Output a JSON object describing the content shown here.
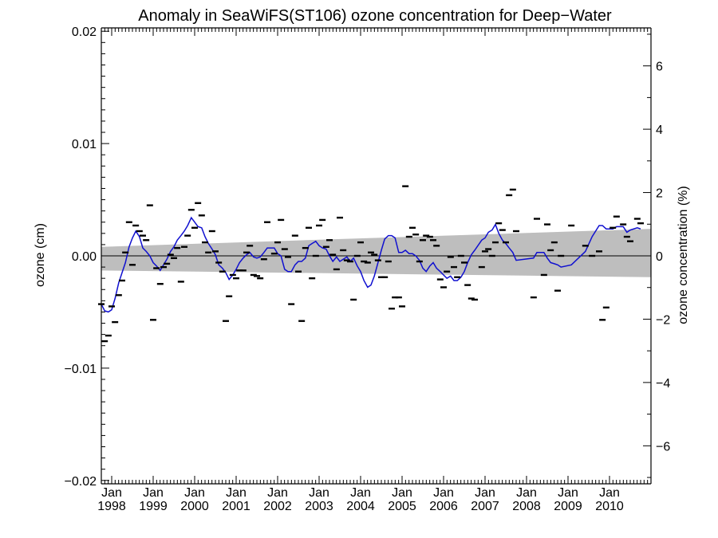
{
  "chart_data": {
    "type": "line",
    "title": "Anomaly in SeaWiFS(ST106) ozone concentration for Deep−Water",
    "ylabel_left": "ozone (cm)",
    "ylabel_right": "ozone concentration (%)",
    "xlabel": "",
    "xlim": [
      1997.75,
      2011.0
    ],
    "ylim_left": [
      -0.0203,
      0.0203
    ],
    "ylim_right": [
      -7.2,
      7.2
    ],
    "y_ticks_left": [
      {
        "value": 0.02,
        "label": "0.02"
      },
      {
        "value": 0.01,
        "label": "0.01"
      },
      {
        "value": 0.0,
        "label": "0.00"
      },
      {
        "value": -0.01,
        "label": "−0.01"
      },
      {
        "value": -0.02,
        "label": "−0.02"
      }
    ],
    "y_ticks_right": [
      {
        "value": 6,
        "label": "6"
      },
      {
        "value": 4,
        "label": "4"
      },
      {
        "value": 2,
        "label": "2"
      },
      {
        "value": 0,
        "label": "0"
      },
      {
        "value": -2,
        "label": "−2"
      },
      {
        "value": -4,
        "label": "−4"
      },
      {
        "value": -6,
        "label": "−6"
      }
    ],
    "x_ticks": [
      {
        "value": 1998,
        "month": "Jan",
        "year": "1998"
      },
      {
        "value": 1999,
        "month": "Jan",
        "year": "1999"
      },
      {
        "value": 2000,
        "month": "Jan",
        "year": "2000"
      },
      {
        "value": 2001,
        "month": "Jan",
        "year": "2001"
      },
      {
        "value": 2002,
        "month": "Jan",
        "year": "2002"
      },
      {
        "value": 2003,
        "month": "Jan",
        "year": "2003"
      },
      {
        "value": 2004,
        "month": "Jan",
        "year": "2004"
      },
      {
        "value": 2005,
        "month": "Jan",
        "year": "2005"
      },
      {
        "value": 2006,
        "month": "Jan",
        "year": "2006"
      },
      {
        "value": 2007,
        "month": "Jan",
        "year": "2007"
      },
      {
        "value": 2008,
        "month": "Jan",
        "year": "2008"
      },
      {
        "value": 2009,
        "month": "Jan",
        "year": "2009"
      },
      {
        "value": 2010,
        "month": "Jan",
        "year": "2010"
      }
    ],
    "zero_line": 0.0,
    "confidence_band": {
      "x": [
        1997.75,
        2011.0
      ],
      "upper": [
        0.0008,
        0.0024
      ],
      "lower": [
        -0.0013,
        -0.0019
      ]
    },
    "monthly_anomalies": [
      [
        1997.75,
        -0.0043
      ],
      [
        1997.83,
        -0.0076
      ],
      [
        1997.92,
        -0.0071
      ],
      [
        1998.0,
        -0.0045
      ],
      [
        1998.08,
        -0.0059
      ],
      [
        1998.17,
        -0.0035
      ],
      [
        1998.25,
        -0.0022
      ],
      [
        1998.33,
        0.0003
      ],
      [
        1998.42,
        0.003
      ],
      [
        1998.5,
        -0.0008
      ],
      [
        1998.58,
        0.0027
      ],
      [
        1998.67,
        0.0022
      ],
      [
        1998.75,
        0.0018
      ],
      [
        1998.83,
        0.0014
      ],
      [
        1998.92,
        0.0045
      ],
      [
        1999.0,
        -0.0057
      ],
      [
        1999.08,
        -0.0011
      ],
      [
        1999.17,
        -0.0025
      ],
      [
        1999.25,
        -0.001
      ],
      [
        1999.33,
        -0.0007
      ],
      [
        1999.42,
        0.0001
      ],
      [
        1999.5,
        -0.0002
      ],
      [
        1999.58,
        0.0007
      ],
      [
        1999.67,
        -0.0023
      ],
      [
        1999.75,
        0.0008
      ],
      [
        1999.83,
        0.0018
      ],
      [
        1999.92,
        0.0041
      ],
      [
        2000.0,
        0.0025
      ],
      [
        2000.08,
        0.0047
      ],
      [
        2000.17,
        0.0036
      ],
      [
        2000.25,
        0.0012
      ],
      [
        2000.33,
        0.0003
      ],
      [
        2000.42,
        0.0022
      ],
      [
        2000.5,
        0.0004
      ],
      [
        2000.58,
        -0.0006
      ],
      [
        2000.67,
        -0.0014
      ],
      [
        2000.75,
        -0.0058
      ],
      [
        2000.83,
        -0.0036
      ],
      [
        2000.92,
        -0.0017
      ],
      [
        2001.0,
        -0.002
      ],
      [
        2001.08,
        -0.0013
      ],
      [
        2001.17,
        -0.0013
      ],
      [
        2001.25,
        0.0003
      ],
      [
        2001.33,
        0.0009
      ],
      [
        2001.42,
        -0.0017
      ],
      [
        2001.5,
        -0.0018
      ],
      [
        2001.58,
        -0.002
      ],
      [
        2001.67,
        -0.0003
      ],
      [
        2001.75,
        0.003
      ],
      [
        2001.92,
        0.0002
      ],
      [
        2002.0,
        0.0012
      ],
      [
        2002.08,
        0.0032
      ],
      [
        2002.17,
        0.0006
      ],
      [
        2002.25,
        -0.0001
      ],
      [
        2002.33,
        -0.0043
      ],
      [
        2002.42,
        0.0018
      ],
      [
        2002.5,
        -0.0014
      ],
      [
        2002.58,
        -0.0058
      ],
      [
        2002.67,
        0.0007
      ],
      [
        2002.75,
        0.0025
      ],
      [
        2002.83,
        -0.002
      ],
      [
        2002.92,
        0.0
      ],
      [
        2003.0,
        0.0027
      ],
      [
        2003.08,
        0.0032
      ],
      [
        2003.17,
        0.0008
      ],
      [
        2003.25,
        0.0014
      ],
      [
        2003.33,
        0.0001
      ],
      [
        2003.42,
        -0.0012
      ],
      [
        2003.5,
        0.0034
      ],
      [
        2003.58,
        0.0005
      ],
      [
        2003.67,
        -0.0004
      ],
      [
        2003.75,
        -0.0005
      ],
      [
        2003.83,
        -0.0039
      ],
      [
        2003.92,
        0.0
      ],
      [
        2004.0,
        0.0012
      ],
      [
        2004.08,
        -0.0005
      ],
      [
        2004.17,
        -0.0006
      ],
      [
        2004.25,
        0.0003
      ],
      [
        2004.33,
        0.0001
      ],
      [
        2004.42,
        -0.0004
      ],
      [
        2004.5,
        -0.0019
      ],
      [
        2004.58,
        -0.0019
      ],
      [
        2004.67,
        -0.0005
      ],
      [
        2004.75,
        -0.0047
      ],
      [
        2004.83,
        -0.0037
      ],
      [
        2004.92,
        -0.0037
      ],
      [
        2005.0,
        -0.0045
      ],
      [
        2005.08,
        0.0062
      ],
      [
        2005.17,
        0.0017
      ],
      [
        2005.25,
        0.0025
      ],
      [
        2005.33,
        0.0019
      ],
      [
        2005.42,
        -0.0005
      ],
      [
        2005.5,
        0.0014
      ],
      [
        2005.58,
        0.0018
      ],
      [
        2005.67,
        0.0017
      ],
      [
        2005.75,
        0.0014
      ],
      [
        2005.83,
        0.0009
      ],
      [
        2005.92,
        -0.0021
      ],
      [
        2006.0,
        -0.0028
      ],
      [
        2006.08,
        -0.0014
      ],
      [
        2006.17,
        -0.0001
      ],
      [
        2006.25,
        -0.001
      ],
      [
        2006.33,
        -0.0019
      ],
      [
        2006.42,
        0.0
      ],
      [
        2006.5,
        -0.0006
      ],
      [
        2006.58,
        -0.0026
      ],
      [
        2006.67,
        -0.0038
      ],
      [
        2006.75,
        -0.0039
      ],
      [
        2006.92,
        -0.001
      ],
      [
        2007.0,
        0.0004
      ],
      [
        2007.08,
        0.0006
      ],
      [
        2007.17,
        0.0
      ],
      [
        2007.25,
        0.0012
      ],
      [
        2007.33,
        0.0029
      ],
      [
        2007.42,
        0.0023
      ],
      [
        2007.5,
        0.0012
      ],
      [
        2007.58,
        0.0054
      ],
      [
        2007.67,
        0.0059
      ],
      [
        2007.75,
        0.0022
      ],
      [
        2008.17,
        -0.0037
      ],
      [
        2008.25,
        0.0033
      ],
      [
        2008.42,
        -0.0017
      ],
      [
        2008.5,
        0.0028
      ],
      [
        2008.58,
        0.0005
      ],
      [
        2008.67,
        0.0012
      ],
      [
        2008.75,
        -0.0031
      ],
      [
        2008.83,
        0.0
      ],
      [
        2009.08,
        0.0027
      ],
      [
        2009.42,
        0.0009
      ],
      [
        2009.58,
        0.0
      ],
      [
        2009.75,
        0.0004
      ],
      [
        2009.83,
        -0.0057
      ],
      [
        2009.92,
        -0.0046
      ],
      [
        2010.08,
        0.0025
      ],
      [
        2010.17,
        0.0035
      ],
      [
        2010.33,
        0.0028
      ],
      [
        2010.42,
        0.0017
      ],
      [
        2010.5,
        0.0013
      ],
      [
        2010.67,
        0.0033
      ],
      [
        2010.75,
        0.0029
      ]
    ],
    "smoothed_series": [
      [
        1997.75,
        -0.0043
      ],
      [
        1997.83,
        -0.0049
      ],
      [
        1997.92,
        -0.005
      ],
      [
        1998.0,
        -0.0048
      ],
      [
        1998.08,
        -0.0038
      ],
      [
        1998.17,
        -0.0024
      ],
      [
        1998.25,
        -0.0015
      ],
      [
        1998.33,
        -0.0006
      ],
      [
        1998.42,
        0.0008
      ],
      [
        1998.5,
        0.0016
      ],
      [
        1998.58,
        0.0022
      ],
      [
        1998.67,
        0.0017
      ],
      [
        1998.75,
        0.0007
      ],
      [
        1998.83,
        0.0004
      ],
      [
        1998.92,
        0.0
      ],
      [
        1999.0,
        -0.0006
      ],
      [
        1999.08,
        -0.0009
      ],
      [
        1999.17,
        -0.0013
      ],
      [
        1999.25,
        -0.0008
      ],
      [
        1999.33,
        -0.0003
      ],
      [
        1999.42,
        0.0004
      ],
      [
        1999.5,
        0.0008
      ],
      [
        1999.58,
        0.0014
      ],
      [
        1999.67,
        0.0018
      ],
      [
        1999.75,
        0.0022
      ],
      [
        1999.83,
        0.0027
      ],
      [
        1999.92,
        0.0034
      ],
      [
        2000.0,
        0.003
      ],
      [
        2000.08,
        0.0026
      ],
      [
        2000.17,
        0.0025
      ],
      [
        2000.25,
        0.0017
      ],
      [
        2000.33,
        0.0011
      ],
      [
        2000.42,
        0.0006
      ],
      [
        2000.5,
        0.0001
      ],
      [
        2000.58,
        -0.0008
      ],
      [
        2000.67,
        -0.0011
      ],
      [
        2000.75,
        -0.0015
      ],
      [
        2000.83,
        -0.0021
      ],
      [
        2000.92,
        -0.0017
      ],
      [
        2001.0,
        -0.0012
      ],
      [
        2001.08,
        -0.0006
      ],
      [
        2001.17,
        -0.0002
      ],
      [
        2001.25,
        0.0001
      ],
      [
        2001.33,
        0.0003
      ],
      [
        2001.42,
        -0.0001
      ],
      [
        2001.5,
        -0.0002
      ],
      [
        2001.58,
        -0.0001
      ],
      [
        2001.67,
        0.0003
      ],
      [
        2001.75,
        0.0007
      ],
      [
        2001.92,
        0.0007
      ],
      [
        2002.0,
        0.0002
      ],
      [
        2002.08,
        0.0
      ],
      [
        2002.17,
        -0.0012
      ],
      [
        2002.25,
        -0.0014
      ],
      [
        2002.33,
        -0.0014
      ],
      [
        2002.42,
        -0.0008
      ],
      [
        2002.5,
        -0.0005
      ],
      [
        2002.58,
        -0.0005
      ],
      [
        2002.67,
        -0.0002
      ],
      [
        2002.75,
        0.0009
      ],
      [
        2002.83,
        0.0011
      ],
      [
        2002.92,
        0.0013
      ],
      [
        2003.0,
        0.0009
      ],
      [
        2003.08,
        0.0007
      ],
      [
        2003.17,
        0.0006
      ],
      [
        2003.25,
        0.0
      ],
      [
        2003.33,
        -0.0005
      ],
      [
        2003.42,
        -0.0001
      ],
      [
        2003.5,
        -0.0005
      ],
      [
        2003.58,
        -0.0003
      ],
      [
        2003.67,
        -0.0001
      ],
      [
        2003.75,
        -0.0005
      ],
      [
        2003.83,
        -0.0002
      ],
      [
        2003.92,
        -0.0009
      ],
      [
        2004.0,
        -0.0014
      ],
      [
        2004.08,
        -0.0022
      ],
      [
        2004.17,
        -0.0028
      ],
      [
        2004.25,
        -0.0026
      ],
      [
        2004.33,
        -0.0018
      ],
      [
        2004.42,
        -0.0006
      ],
      [
        2004.5,
        0.0005
      ],
      [
        2004.58,
        0.0015
      ],
      [
        2004.67,
        0.0018
      ],
      [
        2004.75,
        0.0018
      ],
      [
        2004.83,
        0.0016
      ],
      [
        2004.92,
        0.0003
      ],
      [
        2005.0,
        0.0003
      ],
      [
        2005.08,
        0.0005
      ],
      [
        2005.17,
        0.0002
      ],
      [
        2005.25,
        0.0002
      ],
      [
        2005.33,
        0.0
      ],
      [
        2005.42,
        -0.0004
      ],
      [
        2005.5,
        -0.0011
      ],
      [
        2005.58,
        -0.0014
      ],
      [
        2005.67,
        -0.0009
      ],
      [
        2005.75,
        -0.0006
      ],
      [
        2005.83,
        -0.0011
      ],
      [
        2005.92,
        -0.0014
      ],
      [
        2006.0,
        -0.0017
      ],
      [
        2006.08,
        -0.002
      ],
      [
        2006.17,
        -0.0018
      ],
      [
        2006.25,
        -0.0022
      ],
      [
        2006.33,
        -0.0022
      ],
      [
        2006.42,
        -0.0019
      ],
      [
        2006.5,
        -0.0014
      ],
      [
        2006.58,
        -0.0006
      ],
      [
        2006.67,
        0.0001
      ],
      [
        2006.75,
        0.0005
      ],
      [
        2006.92,
        0.0014
      ],
      [
        2007.0,
        0.0016
      ],
      [
        2007.08,
        0.0021
      ],
      [
        2007.17,
        0.0023
      ],
      [
        2007.25,
        0.0028
      ],
      [
        2007.33,
        0.002
      ],
      [
        2007.42,
        0.0014
      ],
      [
        2007.5,
        0.0011
      ],
      [
        2007.58,
        0.0007
      ],
      [
        2007.67,
        0.0003
      ],
      [
        2007.75,
        -0.0004
      ],
      [
        2008.17,
        -0.0002
      ],
      [
        2008.25,
        0.0003
      ],
      [
        2008.42,
        0.0003
      ],
      [
        2008.5,
        -0.0002
      ],
      [
        2008.58,
        -0.0006
      ],
      [
        2008.67,
        -0.0007
      ],
      [
        2008.75,
        -0.0008
      ],
      [
        2008.83,
        -0.001
      ],
      [
        2009.08,
        -0.0008
      ],
      [
        2009.42,
        0.0004
      ],
      [
        2009.58,
        0.0017
      ],
      [
        2009.75,
        0.0027
      ],
      [
        2009.83,
        0.0027
      ],
      [
        2009.92,
        0.0024
      ],
      [
        2010.08,
        0.0024
      ],
      [
        2010.17,
        0.0026
      ],
      [
        2010.33,
        0.0026
      ],
      [
        2010.42,
        0.0021
      ],
      [
        2010.5,
        0.0023
      ],
      [
        2010.67,
        0.0025
      ],
      [
        2010.75,
        0.0024
      ]
    ],
    "colors": {
      "smoothed_line": "#1010d0",
      "confidence_band": "#bebebe",
      "zero_line": "#000000",
      "markers": "#000000",
      "axes": "#000000"
    }
  }
}
